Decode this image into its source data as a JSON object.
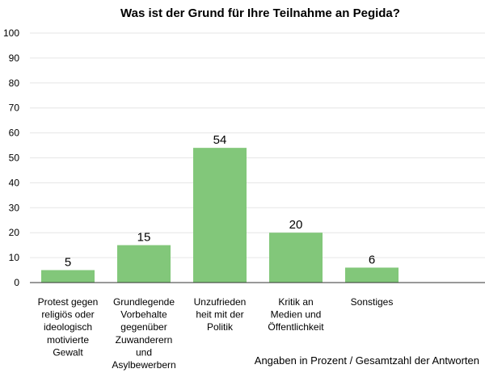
{
  "chart_data": {
    "type": "bar",
    "title": "Was ist der Grund für Ihre Teilnahme an Pegida?",
    "categories": [
      [
        "Protest gegen",
        "religiös oder",
        "ideologisch",
        "motivierte",
        "Gewalt"
      ],
      [
        "Grundlegende",
        "Vorbehalte",
        "gegenüber",
        "Zuwanderern",
        "und",
        "Asylbewerbern"
      ],
      [
        "Unzufrieden",
        "heit mit der",
        "Politik"
      ],
      [
        "Kritik an",
        "Medien und",
        "Öffentlichkeit"
      ],
      [
        "Sonstiges"
      ]
    ],
    "values": [
      5,
      15,
      54,
      20,
      6
    ],
    "ylim": [
      0,
      100
    ],
    "yticks": [
      0,
      10,
      20,
      30,
      40,
      50,
      60,
      70,
      80,
      90,
      100
    ],
    "grid": true,
    "bar_color": "#82c77a",
    "footnote": "Angaben in Prozent / Gesamtzahl der Antworten"
  }
}
